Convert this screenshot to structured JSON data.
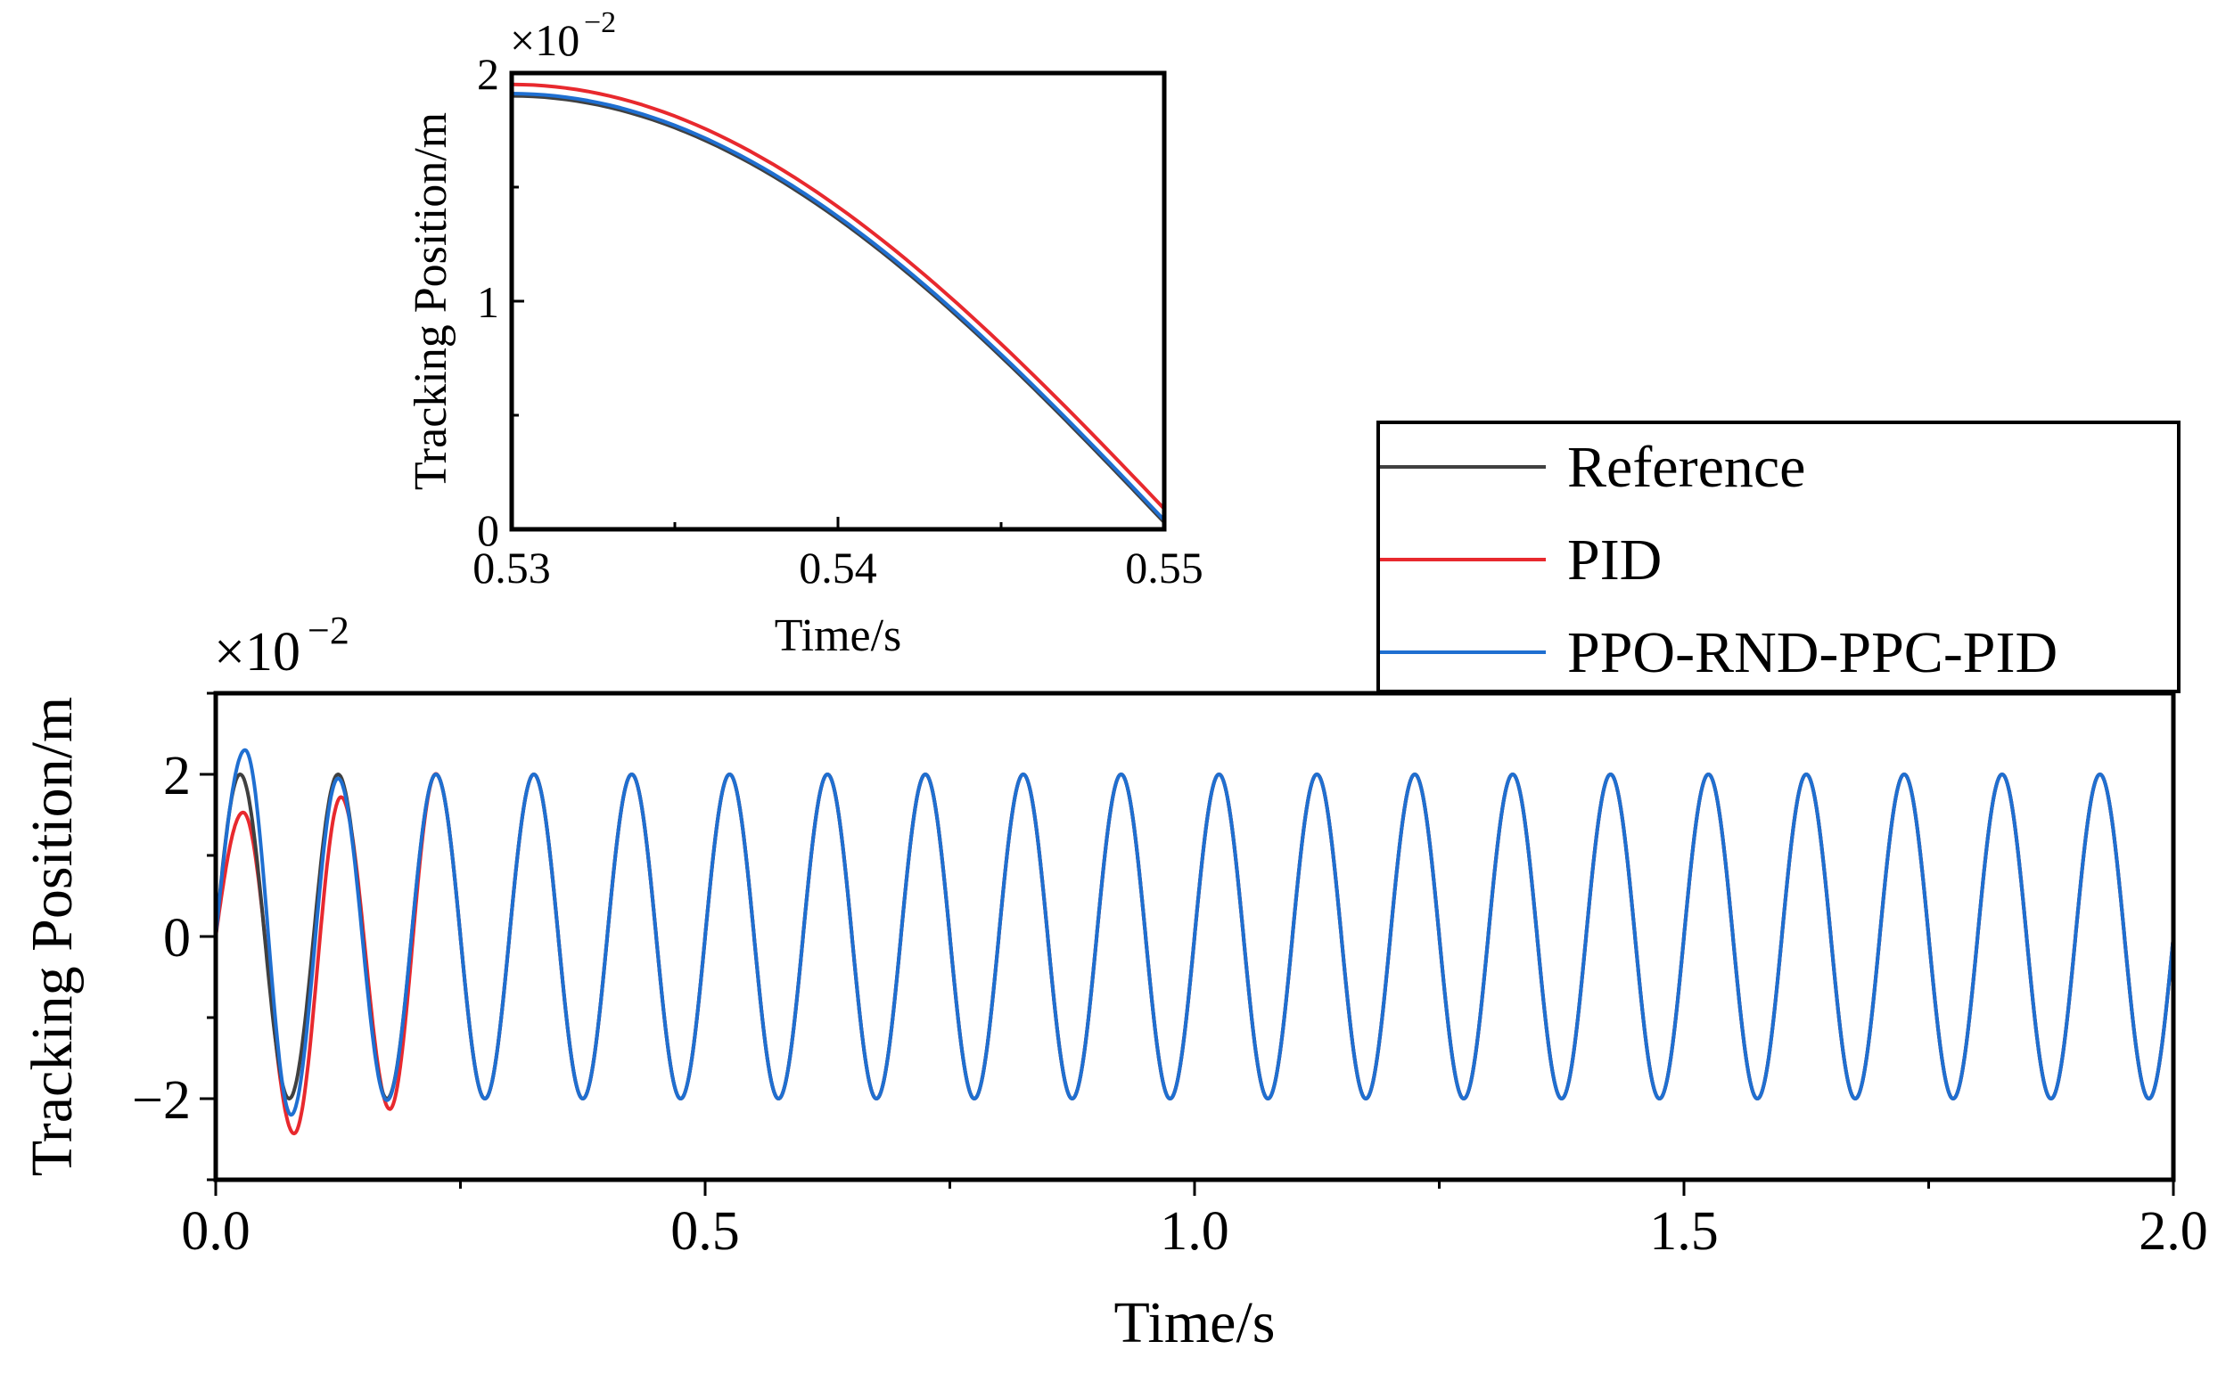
{
  "chart_data": [
    {
      "id": "main",
      "type": "line",
      "title": "",
      "xlabel": "Time/s",
      "ylabel": "Tracking Position/m",
      "y_multiplier": "×10",
      "y_multiplier_exp": "−2",
      "xlim": [
        0,
        2.0
      ],
      "ylim": [
        -3,
        3
      ],
      "xticks": [
        0,
        0.5,
        1.0,
        1.5,
        2.0
      ],
      "xtick_labels": [
        "0.0",
        "0.5",
        "1.0",
        "1.5",
        "2.0"
      ],
      "yticks": [
        -2,
        0,
        2
      ],
      "ytick_labels": [
        "−2",
        "0",
        "2"
      ],
      "grid": false,
      "signal": {
        "form": "sine",
        "amplitude": 2,
        "frequency_hz": 10,
        "unit_scale": "×10^-2 m",
        "duration_s": 2.0
      },
      "series": [
        {
          "name": "Reference",
          "color": "#404040",
          "initial_extremes": [
            {
              "t": 0.025,
              "y": 2.0
            },
            {
              "t": 0.075,
              "y": -2.0
            },
            {
              "t": 0.125,
              "y": 2.0
            },
            {
              "t": 0.175,
              "y": -2.0
            }
          ]
        },
        {
          "name": "PID",
          "color": "#e8292e",
          "initial_extremes": [
            {
              "t": 0.028,
              "y": 1.53
            },
            {
              "t": 0.08,
              "y": -2.43
            },
            {
              "t": 0.128,
              "y": 1.72
            },
            {
              "t": 0.178,
              "y": -2.13
            }
          ]
        },
        {
          "name": "PPO-RND-PPC-PID",
          "color": "#1f6fd1",
          "initial_extremes": [
            {
              "t": 0.03,
              "y": 2.3
            },
            {
              "t": 0.077,
              "y": -2.2
            },
            {
              "t": 0.125,
              "y": 1.95
            },
            {
              "t": 0.175,
              "y": -2.02
            }
          ]
        }
      ],
      "legend": {
        "position": "top-right",
        "entries": [
          "Reference",
          "PID",
          "PPO-RND-PPC-PID"
        ]
      }
    },
    {
      "id": "inset",
      "type": "line",
      "title": "",
      "xlabel": "Time/s",
      "ylabel": "Tracking Position/m",
      "y_multiplier": "×10",
      "y_multiplier_exp": "−2",
      "xlim": [
        0.53,
        0.55
      ],
      "ylim": [
        0,
        2
      ],
      "xticks": [
        0.53,
        0.54,
        0.55
      ],
      "xtick_labels": [
        "0.53",
        "0.54",
        "0.55"
      ],
      "yticks": [
        0,
        1,
        2
      ],
      "ytick_labels": [
        "0",
        "1",
        "2"
      ],
      "grid": false,
      "series": [
        {
          "name": "Reference",
          "color": "#404040",
          "x": [
            0.53,
            0.55
          ],
          "y": [
            1.9,
            0.03
          ]
        },
        {
          "name": "PID",
          "color": "#e8292e",
          "x": [
            0.53,
            0.55
          ],
          "y": [
            1.95,
            0.09
          ]
        },
        {
          "name": "PPO-RND-PPC-PID",
          "color": "#1f6fd1",
          "x": [
            0.53,
            0.55
          ],
          "y": [
            1.91,
            0.04
          ]
        }
      ]
    }
  ]
}
